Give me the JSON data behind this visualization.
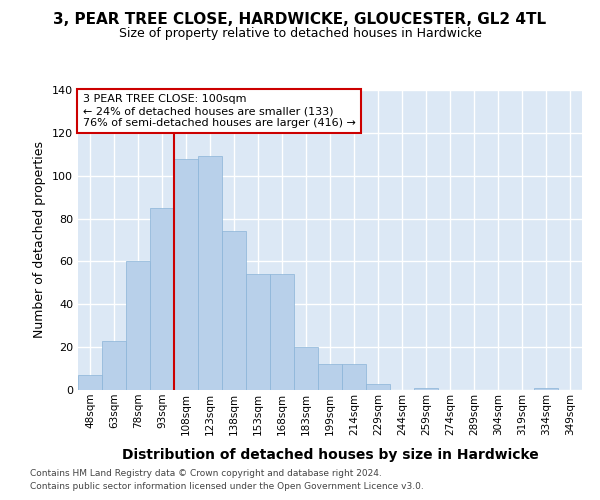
{
  "title": "3, PEAR TREE CLOSE, HARDWICKE, GLOUCESTER, GL2 4TL",
  "subtitle": "Size of property relative to detached houses in Hardwicke",
  "xlabel": "Distribution of detached houses by size in Hardwicke",
  "ylabel": "Number of detached properties",
  "bar_labels": [
    "48sqm",
    "63sqm",
    "78sqm",
    "93sqm",
    "108sqm",
    "123sqm",
    "138sqm",
    "153sqm",
    "168sqm",
    "183sqm",
    "199sqm",
    "214sqm",
    "229sqm",
    "244sqm",
    "259sqm",
    "274sqm",
    "289sqm",
    "304sqm",
    "319sqm",
    "334sqm",
    "349sqm"
  ],
  "bar_values": [
    7,
    23,
    60,
    85,
    108,
    109,
    74,
    54,
    54,
    20,
    12,
    12,
    3,
    0,
    1,
    0,
    0,
    0,
    0,
    1,
    0
  ],
  "bar_color": "#b8d0ea",
  "bar_edgecolor": "#8ab4d8",
  "figure_bg": "#ffffff",
  "axes_bg": "#dce8f5",
  "grid_color": "#ffffff",
  "ann_text_line1": "3 PEAR TREE CLOSE: 100sqm",
  "ann_text_line2": "← 24% of detached houses are smaller (133)",
  "ann_text_line3": "76% of semi-detached houses are larger (416) →",
  "ann_box_facecolor": "#ffffff",
  "ann_box_edgecolor": "#cc0000",
  "redline_x": 3.5,
  "ylim": [
    0,
    140
  ],
  "yticks": [
    0,
    20,
    40,
    60,
    80,
    100,
    120,
    140
  ],
  "title_fontsize": 11,
  "subtitle_fontsize": 9,
  "ylabel_fontsize": 9,
  "xlabel_fontsize": 10,
  "footer_line1": "Contains HM Land Registry data © Crown copyright and database right 2024.",
  "footer_line2": "Contains public sector information licensed under the Open Government Licence v3.0."
}
